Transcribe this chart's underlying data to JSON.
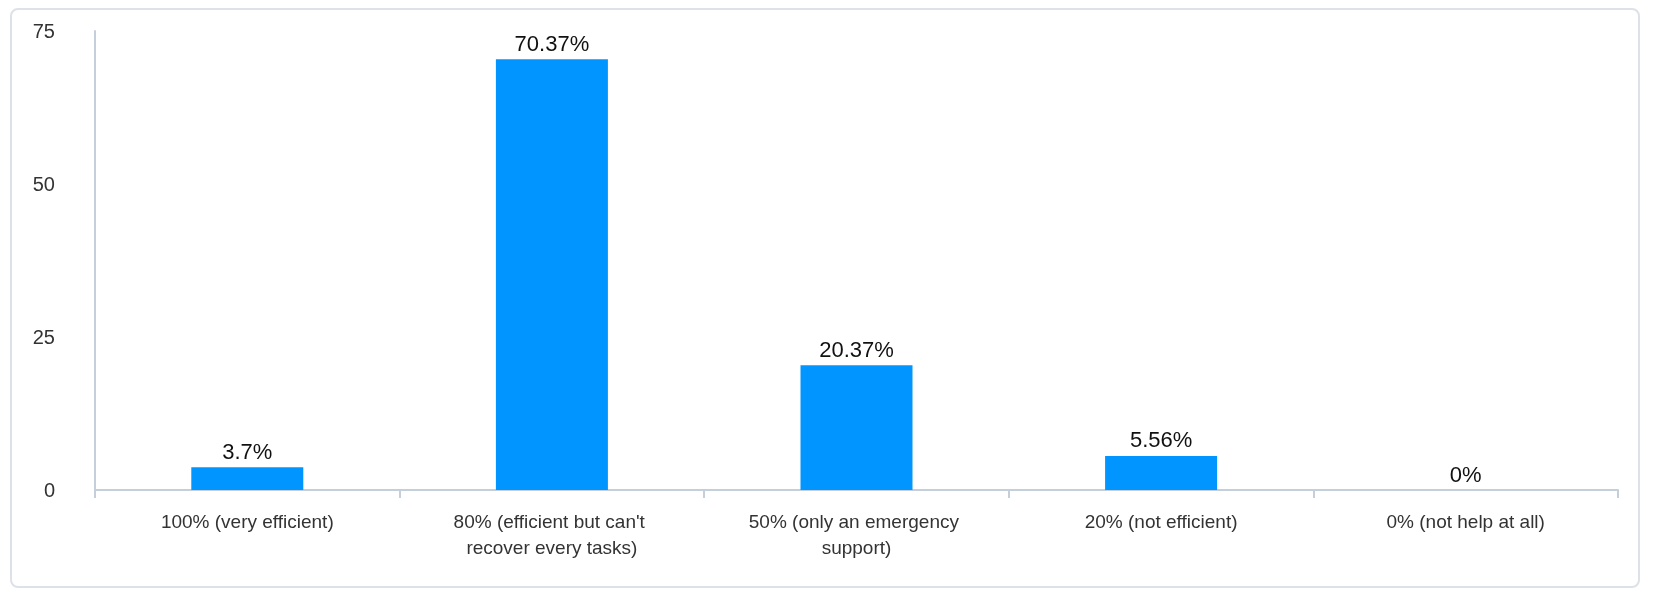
{
  "chart_data": {
    "type": "bar",
    "categories": [
      "100% (very efficient)",
      "80% (efficient but can't recover every tasks)",
      "50% (only an emergency support)",
      "20% (not efficient)",
      "0% (not help at all)"
    ],
    "values": [
      3.7,
      70.37,
      20.37,
      5.56,
      0
    ],
    "value_labels": [
      "3.7%",
      "70.37%",
      "20.37%",
      "5.56%",
      "0%"
    ],
    "color": "#0095ff",
    "ylim": [
      0,
      75
    ],
    "yticks": [
      0,
      25,
      50,
      75
    ],
    "grid": false
  }
}
